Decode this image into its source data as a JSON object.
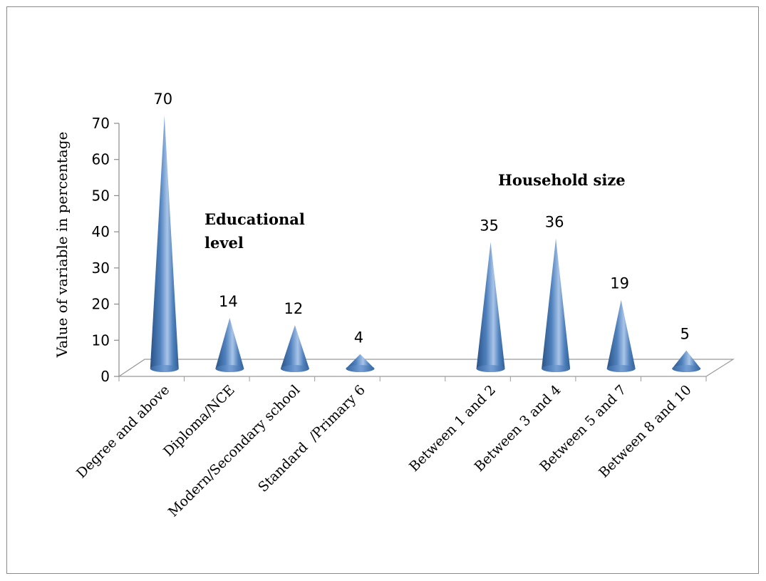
{
  "chart_data": {
    "type": "bar",
    "bar_shape": "cone",
    "ylabel": "Value of variable in percentage",
    "ylim": [
      0,
      70
    ],
    "yticks": [
      "0",
      "10",
      "20",
      "30",
      "40",
      "50",
      "60",
      "70"
    ],
    "categories": [
      "Degree and above",
      "Diploma/NCE",
      "Modern/Secondary school",
      "Standard  /Primary 6",
      "",
      "Between 1 and 2",
      "Between 3 and 4",
      "Between 5 and 7",
      "Between 8 and 10"
    ],
    "values": [
      70,
      14,
      12,
      4,
      null,
      35,
      36,
      19,
      5
    ],
    "data_labels": [
      "70",
      "14",
      "12",
      "4",
      "",
      "35",
      "36",
      "19",
      "5"
    ],
    "annotations": [
      {
        "id": "education",
        "lines": [
          "Educational",
          "level"
        ]
      },
      {
        "id": "household",
        "lines": [
          "Household size"
        ]
      }
    ],
    "colors": {
      "cone_dark": "#2f5d94",
      "cone_mid": "#4f81bd",
      "cone_light": "#b9d0ec",
      "axis": "#8a8a8a"
    }
  }
}
